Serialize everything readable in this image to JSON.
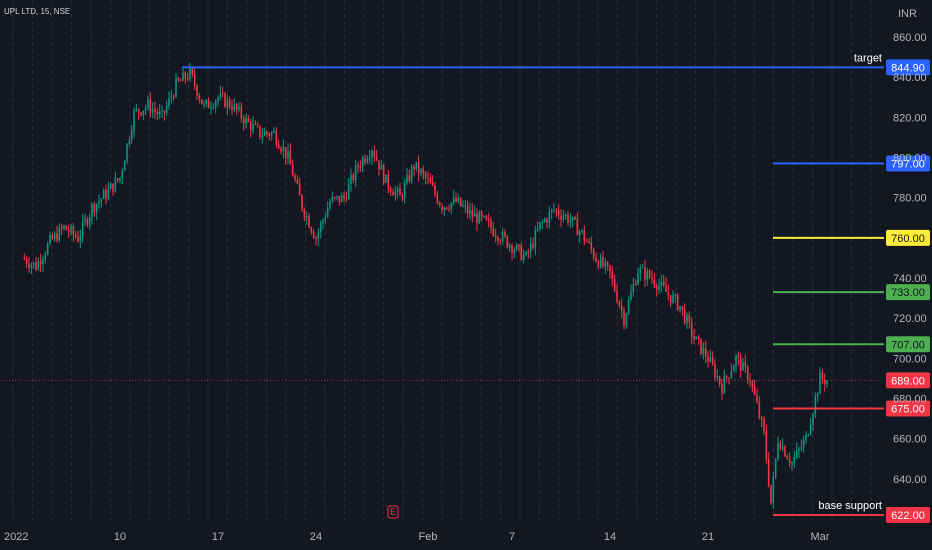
{
  "header": {
    "symbol_line": "UPL LTD, 15, NSE"
  },
  "price_scale": {
    "currency_label": "INR"
  },
  "chart_data": {
    "type": "candlestick",
    "title": "UPL LTD, 15, NSE",
    "ylim": [
      622,
      868
    ],
    "y_ticks": [
      640,
      660,
      680,
      700,
      720,
      740,
      780,
      800,
      820,
      840,
      860
    ],
    "x_ticks": [
      {
        "label": "2022",
        "day": 3
      },
      {
        "label": "10",
        "day": 10
      },
      {
        "label": "17",
        "day": 17
      },
      {
        "label": "24",
        "day": 24
      },
      {
        "label": "Feb",
        "day": 32
      },
      {
        "label": "7",
        "day": 38
      },
      {
        "label": "14",
        "day": 45
      },
      {
        "label": "21",
        "day": 52
      },
      {
        "label": "Mar",
        "day": 60
      }
    ],
    "price_path": [
      {
        "day": 3,
        "price": 750
      },
      {
        "day": 4,
        "price": 746
      },
      {
        "day": 5,
        "price": 758
      },
      {
        "day": 6,
        "price": 765
      },
      {
        "day": 7,
        "price": 760
      },
      {
        "day": 8,
        "price": 775
      },
      {
        "day": 9,
        "price": 782
      },
      {
        "day": 10,
        "price": 790
      },
      {
        "day": 11,
        "price": 822
      },
      {
        "day": 12,
        "price": 826
      },
      {
        "day": 13,
        "price": 820
      },
      {
        "day": 14,
        "price": 836
      },
      {
        "day": 15,
        "price": 842
      },
      {
        "day": 16,
        "price": 825
      },
      {
        "day": 17,
        "price": 830
      },
      {
        "day": 18,
        "price": 826
      },
      {
        "day": 19,
        "price": 818
      },
      {
        "day": 20,
        "price": 812
      },
      {
        "day": 21,
        "price": 812
      },
      {
        "day": 22,
        "price": 800
      },
      {
        "day": 23,
        "price": 776
      },
      {
        "day": 24,
        "price": 760
      },
      {
        "day": 25,
        "price": 778
      },
      {
        "day": 26,
        "price": 780
      },
      {
        "day": 27,
        "price": 796
      },
      {
        "day": 28,
        "price": 805
      },
      {
        "day": 29,
        "price": 788
      },
      {
        "day": 30,
        "price": 780
      },
      {
        "day": 31,
        "price": 796
      },
      {
        "day": 32,
        "price": 788
      },
      {
        "day": 33,
        "price": 776
      },
      {
        "day": 34,
        "price": 778
      },
      {
        "day": 35,
        "price": 772
      },
      {
        "day": 36,
        "price": 768
      },
      {
        "day": 37,
        "price": 762
      },
      {
        "day": 38,
        "price": 756
      },
      {
        "day": 39,
        "price": 750
      },
      {
        "day": 40,
        "price": 766
      },
      {
        "day": 41,
        "price": 774
      },
      {
        "day": 42,
        "price": 770
      },
      {
        "day": 43,
        "price": 762
      },
      {
        "day": 44,
        "price": 750
      },
      {
        "day": 45,
        "price": 742
      },
      {
        "day": 46,
        "price": 720
      },
      {
        "day": 47,
        "price": 744
      },
      {
        "day": 48,
        "price": 740
      },
      {
        "day": 49,
        "price": 733
      },
      {
        "day": 50,
        "price": 726
      },
      {
        "day": 51,
        "price": 710
      },
      {
        "day": 52,
        "price": 700
      },
      {
        "day": 53,
        "price": 686
      },
      {
        "day": 54,
        "price": 700
      },
      {
        "day": 55,
        "price": 690
      },
      {
        "day": 56,
        "price": 662
      },
      {
        "day": 56.5,
        "price": 628
      },
      {
        "day": 57,
        "price": 660
      },
      {
        "day": 58,
        "price": 648
      },
      {
        "day": 59,
        "price": 660
      },
      {
        "day": 60,
        "price": 690
      },
      {
        "day": 60.5,
        "price": 689
      }
    ],
    "levels": [
      {
        "id": "target",
        "price": "844.90",
        "value": 844.9,
        "color": "#2962ff",
        "text_color": "#ffffff",
        "line": "full",
        "note": "target"
      },
      {
        "id": "797",
        "price": "797.00",
        "value": 797.0,
        "color": "#2962ff",
        "text_color": "#ffffff",
        "line": "short",
        "note": ""
      },
      {
        "id": "760",
        "price": "760.00",
        "value": 760.0,
        "color": "#ffeb3b",
        "text_color": "#131722",
        "line": "short",
        "note": ""
      },
      {
        "id": "733",
        "price": "733.00",
        "value": 733.0,
        "color": "#4caf50",
        "text_color": "#131722",
        "line": "short",
        "note": ""
      },
      {
        "id": "707",
        "price": "707.00",
        "value": 707.0,
        "color": "#4caf50",
        "text_color": "#131722",
        "line": "short",
        "note": ""
      },
      {
        "id": "last",
        "price": "689.00",
        "value": 689.0,
        "color": "#f23645",
        "text_color": "#ffffff",
        "line": "dotted",
        "note": ""
      },
      {
        "id": "675",
        "price": "675.00",
        "value": 675.0,
        "color": "#f23645",
        "text_color": "#ffffff",
        "line": "short",
        "note": ""
      },
      {
        "id": "base",
        "price": "622.00",
        "value": 622.0,
        "color": "#f23645",
        "text_color": "#ffffff",
        "line": "short",
        "note": "base support"
      }
    ],
    "event_marker": {
      "label": "E",
      "day": 29.5,
      "color": "#f23645"
    },
    "colors": {
      "background": "#131722",
      "grid": "#2a2e39",
      "up": "#089981",
      "down": "#f23645",
      "axis_text": "#b2b5be"
    }
  }
}
